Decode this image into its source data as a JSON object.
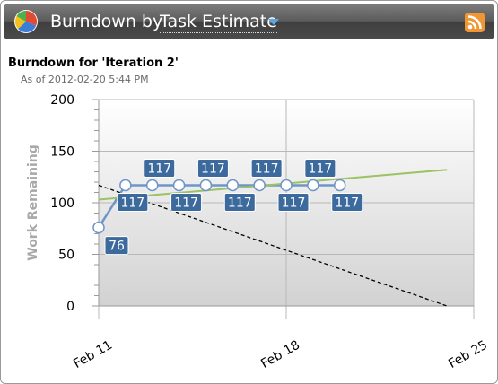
{
  "header": {
    "title": "Burndown by",
    "selected_estimate": "Task Estimate",
    "logo_icon": "pie-chart-logo-icon",
    "feed_icon": "rss-feed-icon"
  },
  "chart_data": {
    "type": "line",
    "title": "Burndown for 'Iteration 2'",
    "subtitle": "As of 2012-02-20 5:44 PM",
    "ylabel": "Work Remaining",
    "xlabel": "",
    "ylim": [
      0,
      200
    ],
    "yticks": [
      0,
      50,
      100,
      150,
      200
    ],
    "xlim": [
      "2012-02-11",
      "2012-02-25"
    ],
    "xticks": [
      {
        "date": "2012-02-11",
        "label": "Feb 11"
      },
      {
        "date": "2012-02-18",
        "label": "Feb 18"
      },
      {
        "date": "2012-02-25",
        "label": "Feb 25"
      }
    ],
    "series": [
      {
        "kind": "actual",
        "color": "#6e95c8",
        "points": [
          {
            "x": "2012-02-11",
            "y": 76
          },
          {
            "x": "2012-02-12",
            "y": 117
          },
          {
            "x": "2012-02-13",
            "y": 117
          },
          {
            "x": "2012-02-14",
            "y": 117
          },
          {
            "x": "2012-02-15",
            "y": 117
          },
          {
            "x": "2012-02-16",
            "y": 117
          },
          {
            "x": "2012-02-17",
            "y": 117
          },
          {
            "x": "2012-02-18",
            "y": 117
          },
          {
            "x": "2012-02-19",
            "y": 117
          },
          {
            "x": "2012-02-20",
            "y": 117
          }
        ]
      },
      {
        "kind": "trend",
        "color": "#9bc264",
        "points": [
          {
            "x": "2012-02-11",
            "y": 103
          },
          {
            "x": "2012-02-24",
            "y": 132
          }
        ]
      },
      {
        "kind": "ideal",
        "color": "#000000",
        "dashed": true,
        "points": [
          {
            "x": "2012-02-11",
            "y": 117
          },
          {
            "x": "2012-02-24",
            "y": 0
          }
        ]
      }
    ],
    "data_labels": [
      "76",
      "117",
      "117",
      "117",
      "117",
      "117",
      "117",
      "117",
      "117",
      "117"
    ],
    "label_color": "#3d6a9c"
  }
}
